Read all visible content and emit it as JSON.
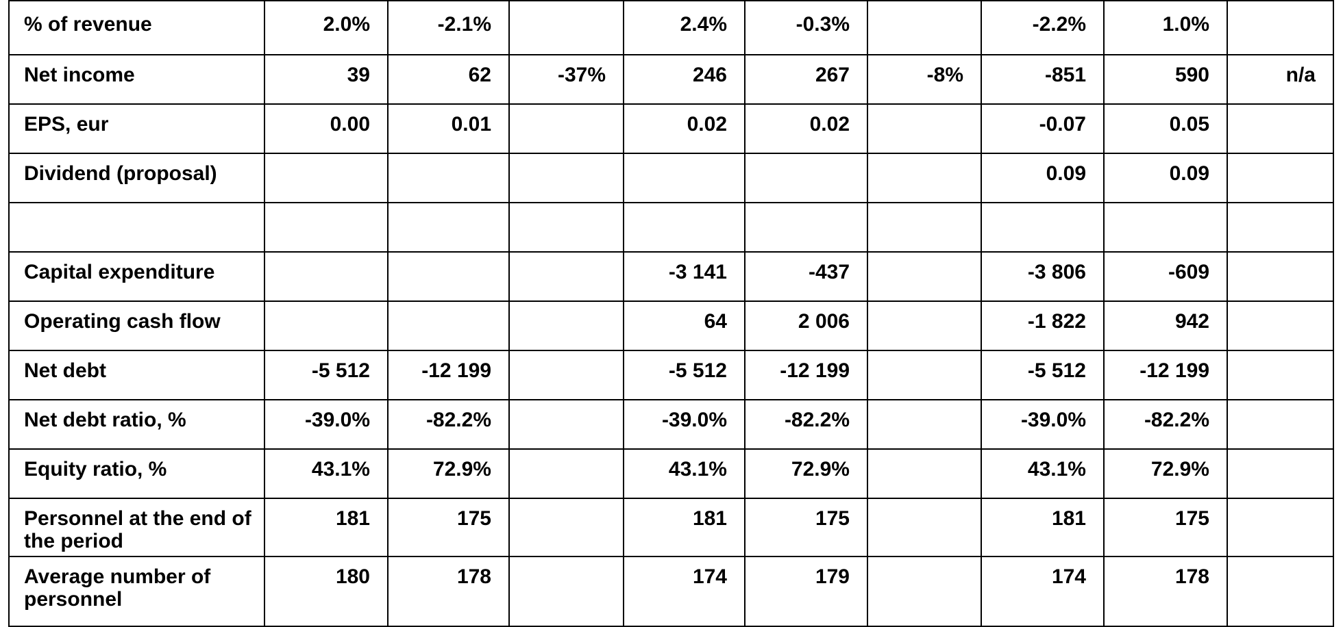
{
  "table": {
    "rows": [
      [
        "% of revenue",
        "2.0%",
        "-2.1%",
        null,
        "2.4%",
        "-0.3%",
        null,
        "-2.2%",
        "1.0%",
        null
      ],
      [
        "Net income",
        "39",
        "62",
        "-37%",
        "246",
        "267",
        "-8%",
        "-851",
        "590",
        "n/a"
      ],
      [
        "EPS, eur",
        "0.00",
        "0.01",
        null,
        "0.02",
        "0.02",
        null,
        "-0.07",
        "0.05",
        null
      ],
      [
        "Dividend (proposal)",
        null,
        null,
        null,
        null,
        null,
        null,
        "0.09",
        "0.09",
        null
      ],
      [
        null,
        null,
        null,
        null,
        null,
        null,
        null,
        null,
        null,
        null
      ],
      [
        "Capital expenditure",
        null,
        null,
        null,
        "-3 141",
        "-437",
        null,
        "-3 806",
        "-609",
        null
      ],
      [
        "Operating cash flow",
        null,
        null,
        null,
        "64",
        "2 006",
        null,
        "-1 822",
        "942",
        null
      ],
      [
        "Net debt",
        "-5 512",
        "-12 199",
        null,
        "-5 512",
        "-12 199",
        null,
        "-5 512",
        "-12 199",
        null
      ],
      [
        "Net debt ratio, %",
        "-39.0%",
        "-82.2%",
        null,
        "-39.0%",
        "-82.2%",
        null,
        "-39.0%",
        "-82.2%",
        null
      ],
      [
        "Equity ratio, %",
        "43.1%",
        "72.9%",
        null,
        "43.1%",
        "72.9%",
        null,
        "43.1%",
        "72.9%",
        null
      ],
      [
        "Personnel at the end of the period",
        "181",
        "175",
        null,
        "181",
        "175",
        null,
        "181",
        "175",
        null
      ],
      [
        "Average number of personnel",
        "180",
        "178",
        null,
        "174",
        "179",
        null,
        "174",
        "178",
        null
      ]
    ]
  }
}
